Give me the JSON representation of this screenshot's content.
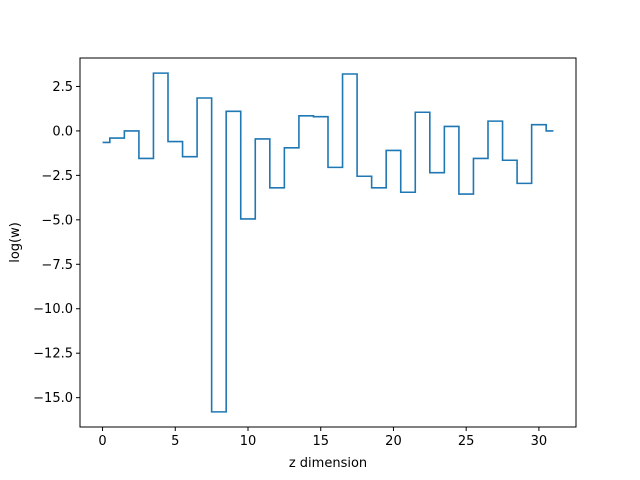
{
  "chart_data": {
    "type": "line",
    "drawstyle": "steps-mid",
    "xlabel": "z dimension",
    "ylabel": "log(w)",
    "xlim": [
      -1.55,
      32.55
    ],
    "ylim": [
      -16.65,
      4.1
    ],
    "x_ticks": [
      0,
      5,
      10,
      15,
      20,
      25,
      30
    ],
    "x_tick_labels": [
      "0",
      "5",
      "10",
      "15",
      "20",
      "25",
      "30"
    ],
    "y_ticks": [
      2.5,
      0.0,
      -2.5,
      -5.0,
      -7.5,
      -10.0,
      -12.5,
      -15.0
    ],
    "y_tick_labels": [
      "2.5",
      "0.0",
      "−2.5",
      "−5.0",
      "−7.5",
      "−10.0",
      "−12.5",
      "−15.0"
    ],
    "grid": false,
    "series": [
      {
        "color": "#1f77b4",
        "x": [
          0,
          1,
          2,
          3,
          4,
          5,
          6,
          7,
          8,
          9,
          10,
          11,
          12,
          13,
          14,
          15,
          16,
          17,
          18,
          19,
          20,
          21,
          22,
          23,
          24,
          25,
          26,
          27,
          28,
          29,
          30,
          31
        ],
        "values": [
          -0.65,
          -0.4,
          0.0,
          -1.55,
          3.25,
          -0.6,
          -1.45,
          1.85,
          -15.8,
          1.1,
          -4.95,
          -0.45,
          -3.2,
          -0.95,
          0.85,
          0.8,
          -2.05,
          3.2,
          -2.55,
          -3.2,
          -1.1,
          -3.45,
          1.05,
          -2.35,
          0.25,
          -3.55,
          -1.55,
          0.55,
          -1.65,
          -2.95,
          0.35,
          0.0
        ]
      }
    ]
  }
}
